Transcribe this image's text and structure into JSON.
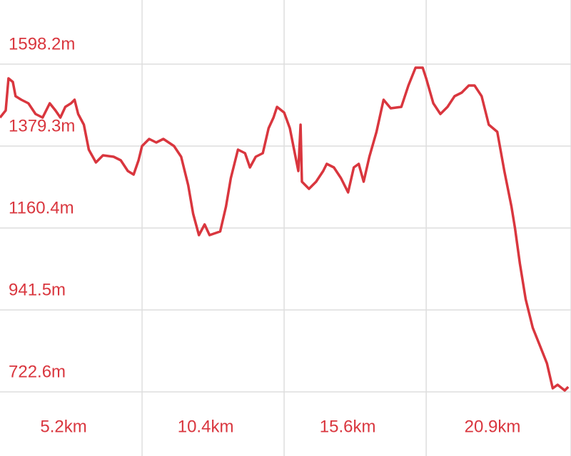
{
  "chart_data": {
    "type": "line",
    "color": "#d9363e",
    "grid": true,
    "xlim": [
      0,
      20.9
    ],
    "ylim": [
      551.3,
      1769.5
    ],
    "xticks": [
      {
        "value": 5.2,
        "label": "5.2km"
      },
      {
        "value": 10.4,
        "label": "10.4km"
      },
      {
        "value": 15.6,
        "label": "15.6km"
      },
      {
        "value": 20.9,
        "label": "20.9km"
      }
    ],
    "yticks": [
      {
        "value": 722.6,
        "label": "722.6m"
      },
      {
        "value": 941.5,
        "label": "941.5m"
      },
      {
        "value": 1160.4,
        "label": "1160.4m"
      },
      {
        "value": 1379.3,
        "label": "1379.3m"
      },
      {
        "value": 1598.2,
        "label": "1598.2m"
      }
    ],
    "x": [
      0,
      0.21,
      0.31,
      0.47,
      0.57,
      0.78,
      1.04,
      1.3,
      1.56,
      1.82,
      2.03,
      2.21,
      2.39,
      2.6,
      2.73,
      2.86,
      3.07,
      3.25,
      3.51,
      3.77,
      4.16,
      4.42,
      4.68,
      4.89,
      5.07,
      5.2,
      5.46,
      5.72,
      5.98,
      6.37,
      6.63,
      6.89,
      7.07,
      7.28,
      7.49,
      7.67,
      8.06,
      8.27,
      8.45,
      8.71,
      8.97,
      9.15,
      9.36,
      9.62,
      9.83,
      10.01,
      10.14,
      10.4,
      10.61,
      10.79,
      10.92,
      11.0,
      11.05,
      11.31,
      11.57,
      11.83,
      11.96,
      12.22,
      12.48,
      12.74,
      12.95,
      13.13,
      13.31,
      13.52,
      13.78,
      14.04,
      14.3,
      14.69,
      14.95,
      15.21,
      15.47,
      15.6,
      15.86,
      16.12,
      16.38,
      16.64,
      16.9,
      17.16,
      17.37,
      17.63,
      17.89,
      18.2,
      18.46,
      18.72,
      18.85,
      19.03,
      19.24,
      19.5,
      19.76,
      20.02,
      20.23,
      20.41,
      20.67,
      20.8
    ],
    "values": [
      1455.4,
      1474.5,
      1560.1,
      1550.6,
      1512.5,
      1503.0,
      1493.5,
      1465.0,
      1455.4,
      1493.5,
      1474.5,
      1455.4,
      1484.0,
      1493.5,
      1503.0,
      1465.0,
      1436.4,
      1369.8,
      1335.5,
      1354.6,
      1350.8,
      1341.2,
      1312.7,
      1303.2,
      1341.2,
      1379.3,
      1398.3,
      1388.8,
      1398.3,
      1379.3,
      1350.8,
      1274.6,
      1198.5,
      1141.4,
      1169.9,
      1141.4,
      1151.0,
      1217.5,
      1293.6,
      1369.8,
      1360.3,
      1322.2,
      1350.8,
      1360.3,
      1426.9,
      1455.4,
      1484.0,
      1468.8,
      1426.9,
      1360.3,
      1312.7,
      1436.4,
      1284.1,
      1265.1,
      1284.1,
      1312.7,
      1331.7,
      1322.2,
      1293.6,
      1255.6,
      1322.2,
      1331.7,
      1284.1,
      1350.8,
      1417.4,
      1503.0,
      1480.2,
      1484.0,
      1541.1,
      1588.7,
      1588.7,
      1560.1,
      1493.5,
      1465.0,
      1484.0,
      1512.5,
      1522.1,
      1541.1,
      1541.1,
      1512.5,
      1436.4,
      1417.4,
      1312.7,
      1217.5,
      1160.4,
      1065.2,
      970.0,
      893.9,
      846.3,
      798.7,
      732.1,
      741.6,
      726.4,
      735.9
    ]
  }
}
